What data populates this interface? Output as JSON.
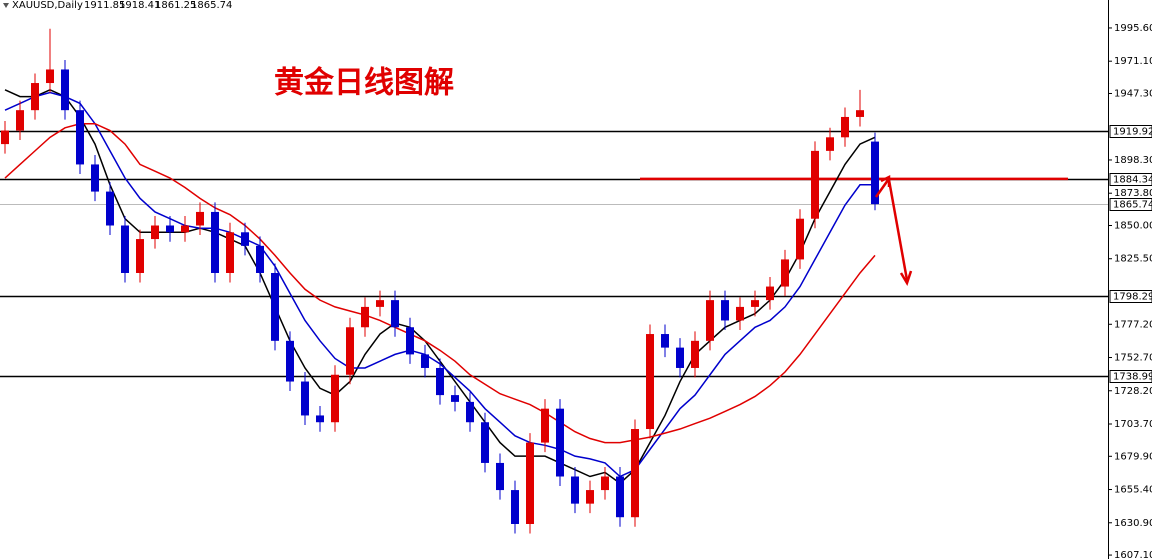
{
  "chart_data": {
    "type": "candlestick",
    "symbol": "XAUUSD,Daily",
    "title": "黄金日线图解",
    "up_color": "#e00000",
    "down_color": "#0000cc",
    "open": [
      1910,
      1920,
      1935,
      1955,
      1965,
      1935,
      1895,
      1875,
      1850,
      1815,
      1840,
      1850,
      1845,
      1850,
      1860,
      1815,
      1845,
      1835,
      1815,
      1765,
      1735,
      1710,
      1705,
      1740,
      1775,
      1790,
      1795,
      1775,
      1755,
      1745,
      1725,
      1720,
      1705,
      1675,
      1655,
      1630,
      1690,
      1715,
      1665,
      1645,
      1655,
      1665,
      1635,
      1700,
      1770,
      1760,
      1745,
      1765,
      1795,
      1780,
      1790,
      1795,
      1805,
      1825,
      1855,
      1905,
      1915,
      1930,
      1911.85
    ],
    "high": [
      1927,
      1942,
      1962,
      1995,
      1972,
      1942,
      1902,
      1882,
      1857,
      1847,
      1857,
      1857,
      1857,
      1867,
      1867,
      1852,
      1852,
      1842,
      1822,
      1772,
      1742,
      1717,
      1747,
      1782,
      1797,
      1802,
      1802,
      1782,
      1762,
      1752,
      1732,
      1727,
      1712,
      1682,
      1662,
      1697,
      1722,
      1722,
      1672,
      1662,
      1672,
      1672,
      1707,
      1777,
      1777,
      1767,
      1772,
      1802,
      1802,
      1797,
      1802,
      1812,
      1832,
      1862,
      1912,
      1922,
      1937,
      1950,
      1918.41
    ],
    "low": [
      1903,
      1913,
      1928,
      1948,
      1928,
      1888,
      1868,
      1843,
      1808,
      1808,
      1833,
      1838,
      1838,
      1843,
      1808,
      1808,
      1828,
      1808,
      1758,
      1728,
      1703,
      1698,
      1698,
      1733,
      1768,
      1783,
      1768,
      1748,
      1738,
      1718,
      1713,
      1698,
      1668,
      1648,
      1623,
      1623,
      1683,
      1658,
      1638,
      1638,
      1648,
      1628,
      1628,
      1693,
      1753,
      1738,
      1738,
      1758,
      1773,
      1773,
      1783,
      1788,
      1798,
      1818,
      1848,
      1898,
      1908,
      1923,
      1861.25
    ],
    "close": [
      1920,
      1935,
      1955,
      1965,
      1935,
      1895,
      1875,
      1850,
      1815,
      1840,
      1850,
      1845,
      1850,
      1860,
      1815,
      1845,
      1835,
      1815,
      1765,
      1735,
      1710,
      1705,
      1740,
      1775,
      1790,
      1795,
      1775,
      1755,
      1745,
      1725,
      1720,
      1705,
      1675,
      1655,
      1630,
      1690,
      1715,
      1665,
      1645,
      1655,
      1665,
      1635,
      1700,
      1770,
      1760,
      1745,
      1765,
      1795,
      1780,
      1790,
      1795,
      1805,
      1825,
      1855,
      1905,
      1915,
      1930,
      1935,
      1865.74
    ],
    "series": [
      {
        "color": "#000000",
        "values": [
          1950,
          1945,
          1945,
          1950,
          1945,
          1930,
          1910,
          1880,
          1855,
          1845,
          1845,
          1845,
          1845,
          1848,
          1845,
          1840,
          1835,
          1815,
          1790,
          1765,
          1745,
          1730,
          1725,
          1735,
          1755,
          1770,
          1778,
          1775,
          1765,
          1750,
          1735,
          1720,
          1705,
          1690,
          1680,
          1680,
          1680,
          1675,
          1670,
          1665,
          1668,
          1660,
          1670,
          1690,
          1710,
          1735,
          1755,
          1765,
          1775,
          1780,
          1785,
          1795,
          1810,
          1830,
          1855,
          1875,
          1895,
          1910,
          1915
        ]
      },
      {
        "color": "#0000cc",
        "values": [
          1935,
          1940,
          1945,
          1948,
          1945,
          1940,
          1925,
          1905,
          1885,
          1870,
          1860,
          1855,
          1850,
          1848,
          1848,
          1845,
          1840,
          1835,
          1820,
          1800,
          1780,
          1765,
          1752,
          1745,
          1745,
          1750,
          1755,
          1758,
          1755,
          1748,
          1738,
          1728,
          1715,
          1705,
          1695,
          1690,
          1688,
          1685,
          1680,
          1678,
          1675,
          1665,
          1670,
          1685,
          1700,
          1715,
          1725,
          1740,
          1755,
          1765,
          1775,
          1780,
          1790,
          1805,
          1825,
          1845,
          1865,
          1880,
          1880
        ]
      },
      {
        "color": "#e00000",
        "values": [
          1885,
          1895,
          1905,
          1915,
          1922,
          1925,
          1925,
          1920,
          1910,
          1895,
          1890,
          1885,
          1878,
          1870,
          1863,
          1858,
          1850,
          1840,
          1828,
          1815,
          1803,
          1795,
          1790,
          1787,
          1784,
          1780,
          1775,
          1770,
          1765,
          1758,
          1750,
          1740,
          1733,
          1726,
          1722,
          1718,
          1712,
          1705,
          1698,
          1693,
          1690,
          1690,
          1692,
          1694,
          1697,
          1700,
          1704,
          1708,
          1713,
          1718,
          1724,
          1732,
          1742,
          1755,
          1770,
          1785,
          1800,
          1815,
          1828
        ]
      }
    ],
    "levels": [
      1919.92,
      1884.34,
      1798.29,
      1738.99
    ],
    "ylim": [
      1604.2,
      2016.2
    ],
    "yticks": [
      {
        "value": 1995.6,
        "label": "1995.60"
      },
      {
        "value": 1971.1,
        "label": "1971.10"
      },
      {
        "value": 1947.3,
        "label": "1947.30"
      },
      {
        "value": 1898.3,
        "label": "1898.30"
      },
      {
        "value": 1873.8,
        "label": "1873.80"
      },
      {
        "value": 1850,
        "label": "1850.00"
      },
      {
        "value": 1825.5,
        "label": "1825.50"
      },
      {
        "value": 1777.2,
        "label": "1777.20"
      },
      {
        "value": 1752.7,
        "label": "1752.70"
      },
      {
        "value": 1728.2,
        "label": "1728.20"
      },
      {
        "value": 1703.7,
        "label": "1703.70"
      },
      {
        "value": 1679.9,
        "label": "1679.90"
      },
      {
        "value": 1655.4,
        "label": "1655.40"
      },
      {
        "value": 1630.9,
        "label": "1630.90"
      },
      {
        "value": 1607.1,
        "label": "1607.10"
      }
    ]
  }
}
